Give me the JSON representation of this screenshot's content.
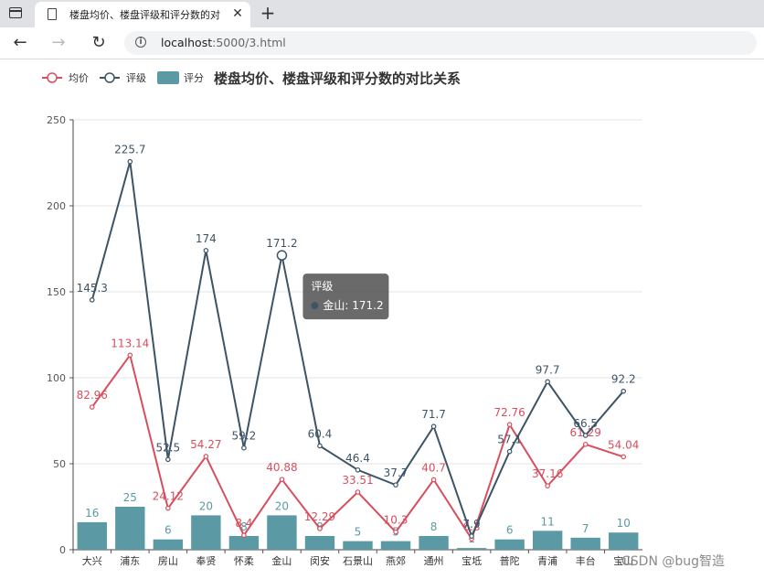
{
  "browser": {
    "tab_title": "楼盘均价、楼盘评级和评分数的对",
    "tab_close": "✕",
    "new_tab": "+",
    "back": "←",
    "forward": "→",
    "reload": "↻",
    "info": "i",
    "url_host": "localhost",
    "url_rest": ":5000/3.html"
  },
  "chart_data": {
    "type": "bar",
    "title": "楼盘均价、楼盘评级和评分数的对比关系",
    "legend": [
      "均价",
      "评级",
      "评分"
    ],
    "legend_position": "top-left",
    "categories": [
      "大兴",
      "浦东",
      "房山",
      "奉贤",
      "怀柔",
      "金山",
      "闵安",
      "石景山",
      "燕郊",
      "通州",
      "宝坻",
      "普陀",
      "青浦",
      "丰台",
      "宝山"
    ],
    "series": [
      {
        "name": "均价",
        "type": "line",
        "color": "#d94e5d",
        "values": [
          82.96,
          113.14,
          24.12,
          54.27,
          8.4,
          40.88,
          12.29,
          33.51,
          10.3,
          40.7,
          6.3,
          72.76,
          37.16,
          61.29,
          54.04
        ]
      },
      {
        "name": "评级",
        "type": "line",
        "color": "#3d5366",
        "values": [
          145.3,
          225.7,
          52.5,
          174,
          59.2,
          171.2,
          60.4,
          46.4,
          37.7,
          71.7,
          7.9,
          57.1,
          97.7,
          66.5,
          92.2
        ]
      },
      {
        "name": "评分",
        "type": "bar",
        "color": "#5b9aa4",
        "values": [
          16,
          25,
          6,
          20,
          8,
          20,
          8,
          5,
          5,
          8,
          1,
          6,
          11,
          7,
          10
        ]
      }
    ],
    "ylim": [
      0,
      250
    ],
    "yticks": [
      0,
      50,
      100,
      150,
      200,
      250
    ],
    "grid": true,
    "tooltip": {
      "series": "评级",
      "category": "金山",
      "value": "171.2"
    }
  },
  "watermark": "CSDN @bug智造"
}
